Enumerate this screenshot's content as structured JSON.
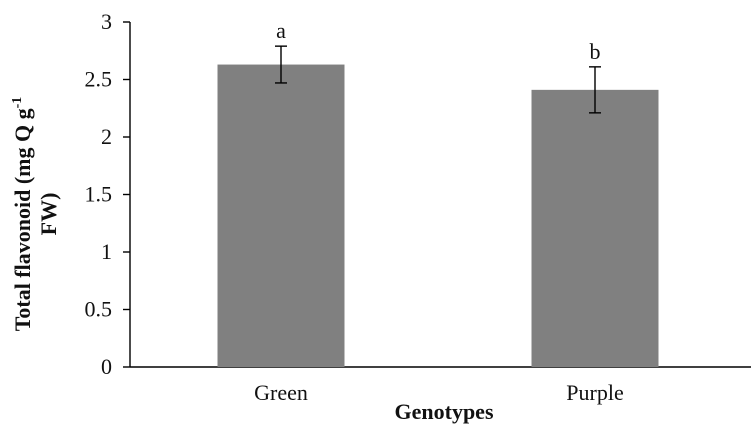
{
  "chart_data": {
    "type": "bar",
    "categories": [
      "Green",
      "Purple"
    ],
    "series": [
      {
        "values": [
          2.63,
          2.41
        ],
        "error": [
          0.16,
          0.2
        ],
        "color": "#808080"
      }
    ],
    "data_labels": [
      "a",
      "b"
    ],
    "xlabel": "Genotypes",
    "ylabel": {
      "main": "Total flavonoid (mg Q g",
      "superscript": "-1",
      "line2": "FW)"
    },
    "ylim": [
      0,
      3
    ],
    "yticks": [
      "0",
      "0.5",
      "1",
      "1.5",
      "2",
      "2.5",
      "3"
    ],
    "grid": false
  }
}
